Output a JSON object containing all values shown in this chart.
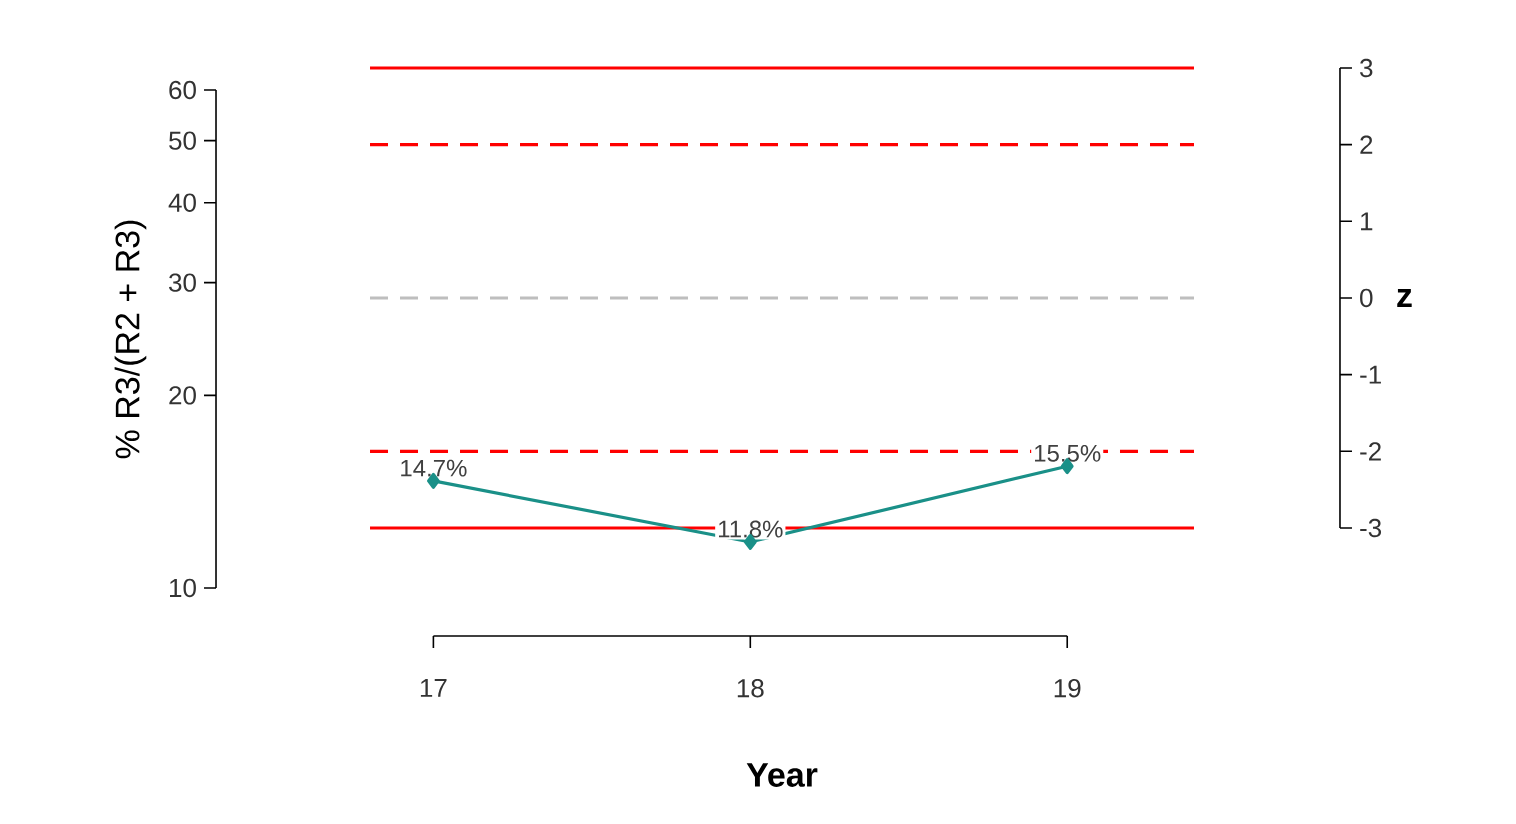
{
  "chart_data": {
    "type": "line",
    "x": [
      17,
      18,
      19
    ],
    "series": [
      {
        "color": "#1a9088",
        "values": [
          14.7,
          11.8,
          15.5
        ],
        "value_labels": [
          "14.7%",
          "11.8%",
          "15.5%"
        ]
      }
    ],
    "marker": "diamond",
    "xlabel": "Year",
    "ylabel": "% R3/(R2 + R3)",
    "y2label": "z",
    "xlim": [
      16.8,
      19.4
    ],
    "xticks": [
      17,
      18,
      19
    ],
    "ylim": [
      10,
      60
    ],
    "log": "y",
    "yticks": [
      10,
      20,
      30,
      40,
      50,
      60
    ],
    "y2lim": [
      -3,
      3
    ],
    "y2ticks": [
      -3,
      -2,
      -1,
      0,
      1,
      2,
      3
    ],
    "ref_lines": [
      {
        "axis": "y2",
        "value": 3,
        "color": "#ff0000",
        "line_style": "solid"
      },
      {
        "axis": "y2",
        "value": 2,
        "color": "#ff0000",
        "line_style": "dashed"
      },
      {
        "axis": "y2",
        "value": 0,
        "color": "#bebebe",
        "line_style": "dashed"
      },
      {
        "axis": "y2",
        "value": -2,
        "color": "#ff0000",
        "line_style": "dashed"
      },
      {
        "axis": "y2",
        "value": -3,
        "color": "#ff0000",
        "line_style": "solid"
      }
    ],
    "grid": false
  }
}
